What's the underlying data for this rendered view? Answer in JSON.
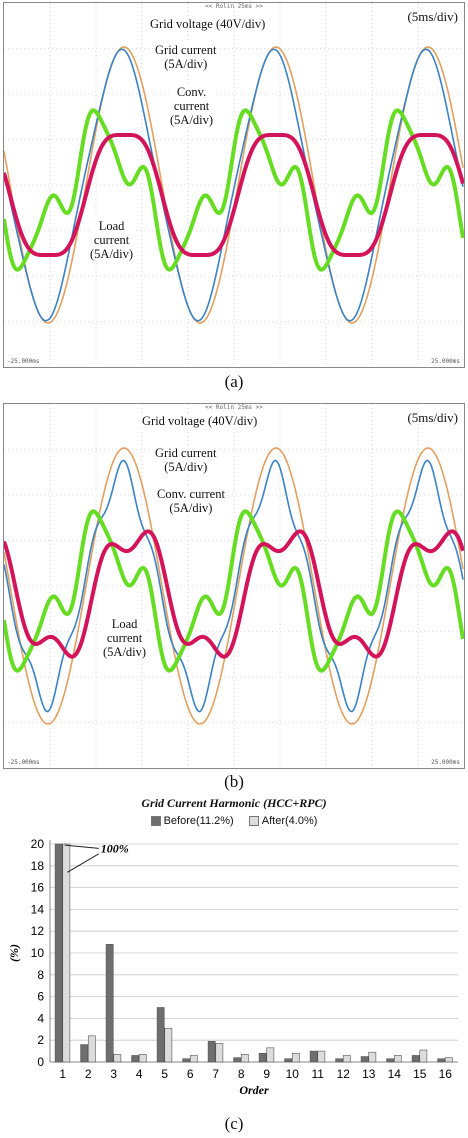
{
  "panel_a": {
    "label": "(a)",
    "time_div": "(5ms/div)",
    "header": "<< Rolin 25ms >>",
    "corner_left": "-25.000ms",
    "corner_right": "25.000ms",
    "annotations": {
      "grid_voltage": "Grid voltage (40V/div)",
      "grid_current": "Grid current\n(5A/div)",
      "conv_current": "Conv.\ncurrent\n(5A/div)",
      "load_current": "Load\ncurrent\n(5A/div)"
    }
  },
  "panel_b": {
    "label": "(b)",
    "time_div": "(5ms/div)",
    "header": "<< Rolin 25ms >>",
    "corner_left": "-25.000ms",
    "corner_right": "25.000ms",
    "annotations": {
      "grid_voltage": "Grid voltage (40V/div)",
      "grid_current": "Grid current\n(5A/div)",
      "conv_current": "Conv. current\n(5A/div)",
      "load_current": "Load\ncurrent\n(5A/div)"
    }
  },
  "panel_c": {
    "label": "(c)"
  },
  "colors": {
    "grid_voltage": "#e0a060",
    "grid_current": "#3b82c4",
    "conv_current": "#d4145a",
    "load_current": "#66dd22",
    "before": "#6e6e6e",
    "after": "#dcdcdc"
  },
  "chart_data": {
    "type": "bar",
    "title": "Grid Current Harmonic (HCC+RPC)",
    "xlabel": "Order",
    "ylabel": "(%)",
    "ylim": [
      0,
      20
    ],
    "yticks": [
      0,
      2,
      4,
      6,
      8,
      10,
      12,
      14,
      16,
      18,
      20
    ],
    "grid": true,
    "legend": "top",
    "annotation": "100%",
    "categories": [
      "1",
      "2",
      "3",
      "4",
      "5",
      "6",
      "7",
      "8",
      "9",
      "10",
      "11",
      "12",
      "13",
      "14",
      "15",
      "16"
    ],
    "series": [
      {
        "name": "Before(11.2%)",
        "values": [
          20,
          1.6,
          10.8,
          0.6,
          5.0,
          0.3,
          1.9,
          0.4,
          0.8,
          0.3,
          1.0,
          0.3,
          0.5,
          0.3,
          0.6,
          0.3
        ]
      },
      {
        "name": "After(4.0%)",
        "values": [
          20,
          2.4,
          0.7,
          0.7,
          3.1,
          0.6,
          1.7,
          0.7,
          1.3,
          0.8,
          1.0,
          0.6,
          0.9,
          0.6,
          1.1,
          0.4
        ]
      }
    ]
  }
}
